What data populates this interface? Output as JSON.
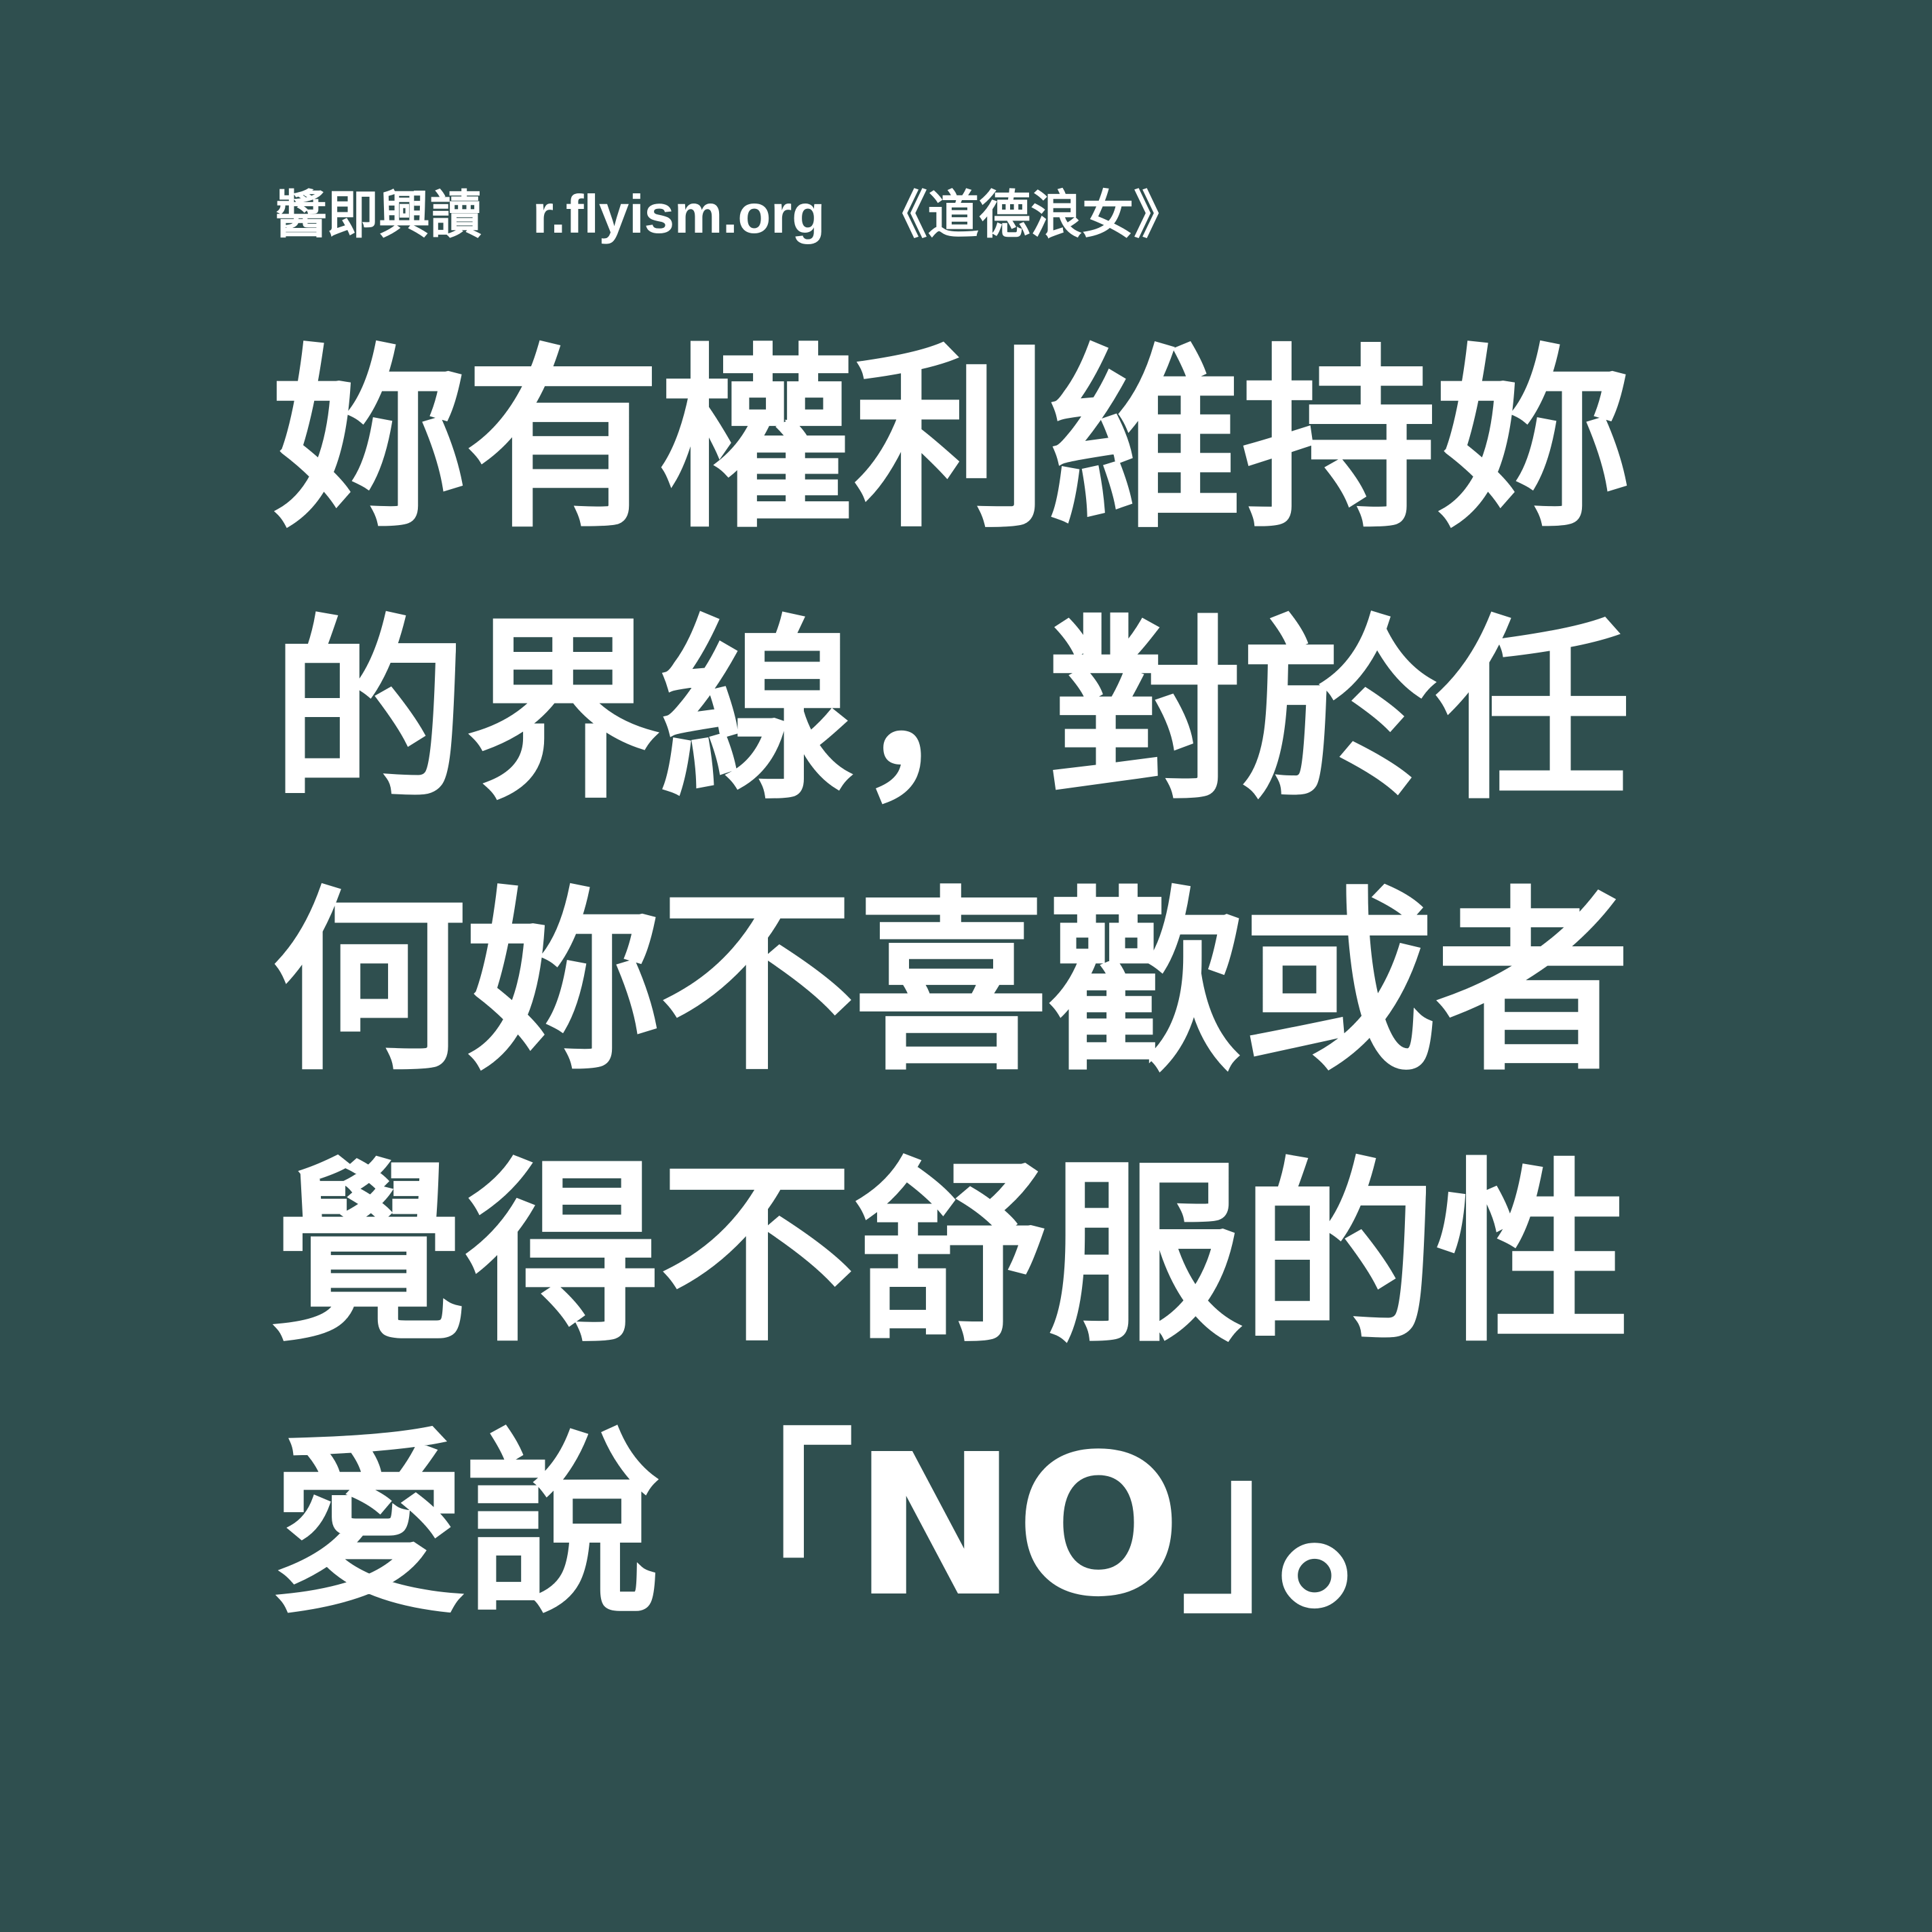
{
  "header": {
    "brand": "醬即興讀",
    "url": "r.flyism.org",
    "book": "《道德浪女》"
  },
  "quote": {
    "lines": [
      "妳有權利維持妳",
      "的界線，對於任",
      "何妳不喜歡或者",
      "覺得不舒服的性",
      "愛說「NO」。"
    ]
  },
  "colors": {
    "background": "#2f4f4f",
    "text": "#ffffff"
  }
}
